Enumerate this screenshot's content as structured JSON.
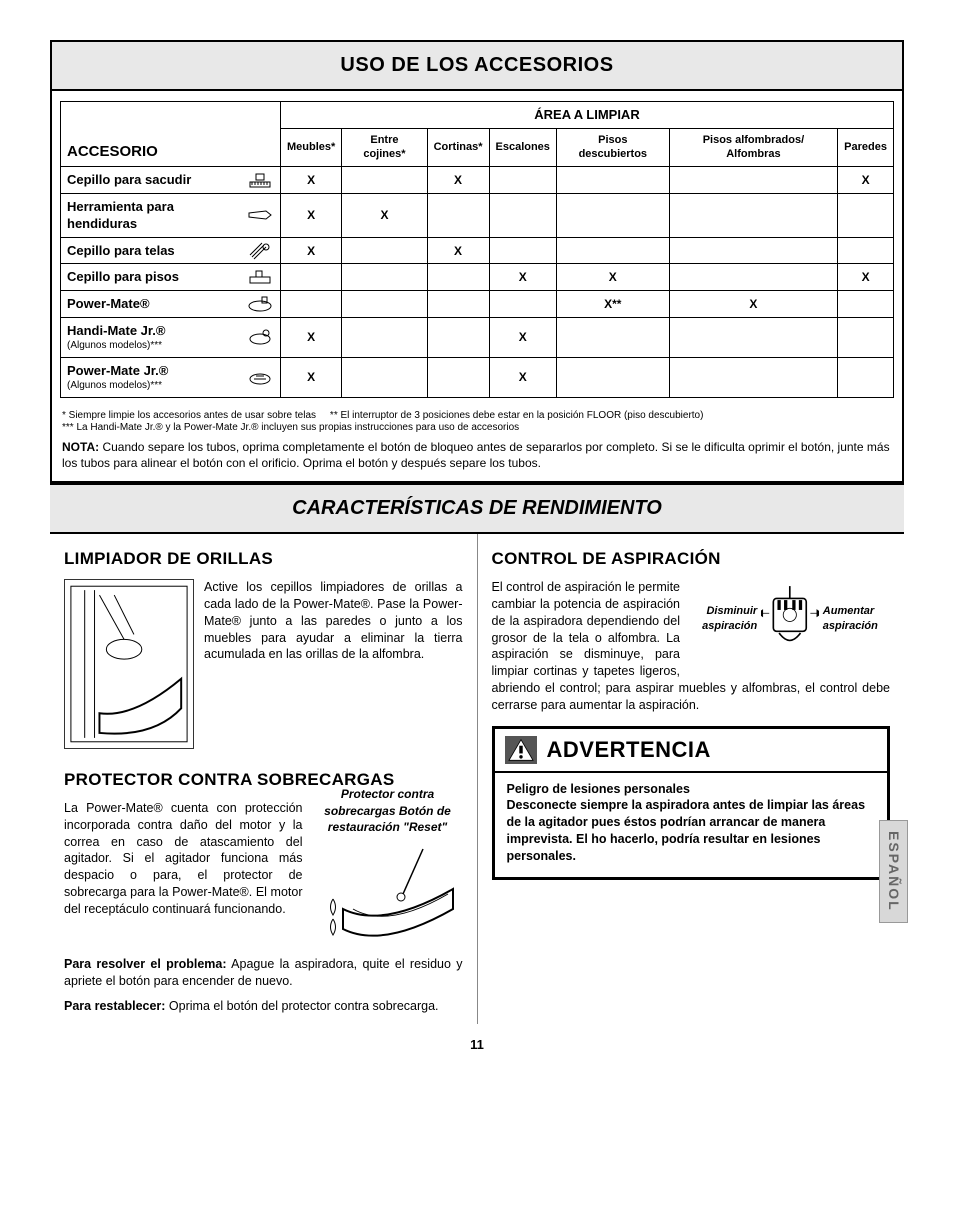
{
  "section1": {
    "header": "USO DE LOS ACCESORIOS",
    "area_header": "ÁREA A LIMPIAR",
    "row_header": "ACCESORIO",
    "columns": [
      "Meubles*",
      "Entre cojines*",
      "Cortinas*",
      "Escalones",
      "Pisos descubiertos",
      "Pisos alfombrados/ Alfombras",
      "Paredes"
    ],
    "rows": [
      {
        "label": "Cepillo para sacudir",
        "sub": "",
        "cells": [
          "X",
          "",
          "X",
          "",
          "",
          "",
          "X"
        ]
      },
      {
        "label": "Herramienta para hendiduras",
        "sub": "",
        "cells": [
          "X",
          "X",
          "",
          "",
          "",
          "",
          ""
        ]
      },
      {
        "label": "Cepillo para telas",
        "sub": "",
        "cells": [
          "X",
          "",
          "X",
          "",
          "",
          "",
          ""
        ]
      },
      {
        "label": "Cepillo para pisos",
        "sub": "",
        "cells": [
          "",
          "",
          "",
          "X",
          "X",
          "",
          "X"
        ]
      },
      {
        "label": "Power-Mate®",
        "sub": "",
        "cells": [
          "",
          "",
          "",
          "",
          "X**",
          "X",
          ""
        ]
      },
      {
        "label": "Handi-Mate Jr.®",
        "sub": "(Algunos modelos)***",
        "cells": [
          "X",
          "",
          "",
          "X",
          "",
          "",
          ""
        ]
      },
      {
        "label": "Power-Mate Jr.®",
        "sub": "(Algunos modelos)***",
        "cells": [
          "X",
          "",
          "",
          "X",
          "",
          "",
          ""
        ]
      }
    ],
    "footnote1": "* Siempre limpie los accesorios antes de usar sobre telas",
    "footnote2": "** El interruptor de 3 posiciones debe estar en la posición FLOOR (piso descubierto)",
    "footnote3": "*** La Handi-Mate Jr.® y la Power-Mate Jr.® incluyen sus propias instrucciones para uso de accesorios",
    "nota_label": "NOTA:",
    "nota_text": " Cuando separe los tubos, oprima completamente el botón de bloqueo antes de separarlos por completo. Si se le dificulta oprimir el botón, junte más los tubos para alinear el botón con el orificio. Oprima el botón y después separe los tubos.",
    "colors": {
      "header_bg": "#e8e8e8",
      "border": "#000000",
      "text": "#000000"
    }
  },
  "section2": {
    "header": "CARACTERÍSTICAS DE RENDIMIENTO",
    "left": {
      "h1": "LIMPIADOR DE ORILLAS",
      "p1": "Active los cepillos limpiadores de orillas a cada lado de la Power-Mate®. Pase la Power-Mate® junto a las paredes o junto a los muebles para ayudar a eliminar la tierra acumulada en las orillas de la alfombra.",
      "h2": "PROTECTOR CONTRA SOBRECARGAS",
      "p2a": "La Power-Mate® cuenta con protección incorporada contra daño del motor y la correa en caso de atascamiento del agitador. Si el agitador funciona más despacio o para, el protector de sobrecarga para la Power-Mate®. El motor del receptáculo continuará funcionando.",
      "fig2_caption": "Protector contra sobrecargas Botón de restauración \"Reset\"",
      "p2b_label": "Para resolver el problema:",
      "p2b": " Apague la aspiradora, quite el residuo y apriete el botón para encender de nuevo.",
      "p2c_label": "Para restablecer:",
      "p2c": " Oprima el botón del protector contra sobrecarga."
    },
    "right": {
      "h1": "CONTROL DE ASPIRACIÓN",
      "fig_left_label": "Disminuir aspiración",
      "fig_right_label": "Aumentar aspiración",
      "p1": "El control de aspiración le permite cambiar la potencia de aspiración de la aspiradora dependiendo del grosor de la tela o alfombra. La aspiración se disminuye, para limpiar cortinas y tapetes ligeros, abriendo el control; para aspirar muebles y alfombras, el control debe cerrarse para aumentar la aspiración.",
      "warning_title": "ADVERTENCIA",
      "warning_lead": "Peligro de lesiones personales",
      "warning_body": "Desconecte siempre la aspiradora antes de limpiar las áreas de la agitador pues éstos podrían arrancar de manera imprevista. El ho hacerlo, podría resultar en lesiones personales."
    }
  },
  "side_tab": "ESPAÑOL",
  "page_number": "11"
}
